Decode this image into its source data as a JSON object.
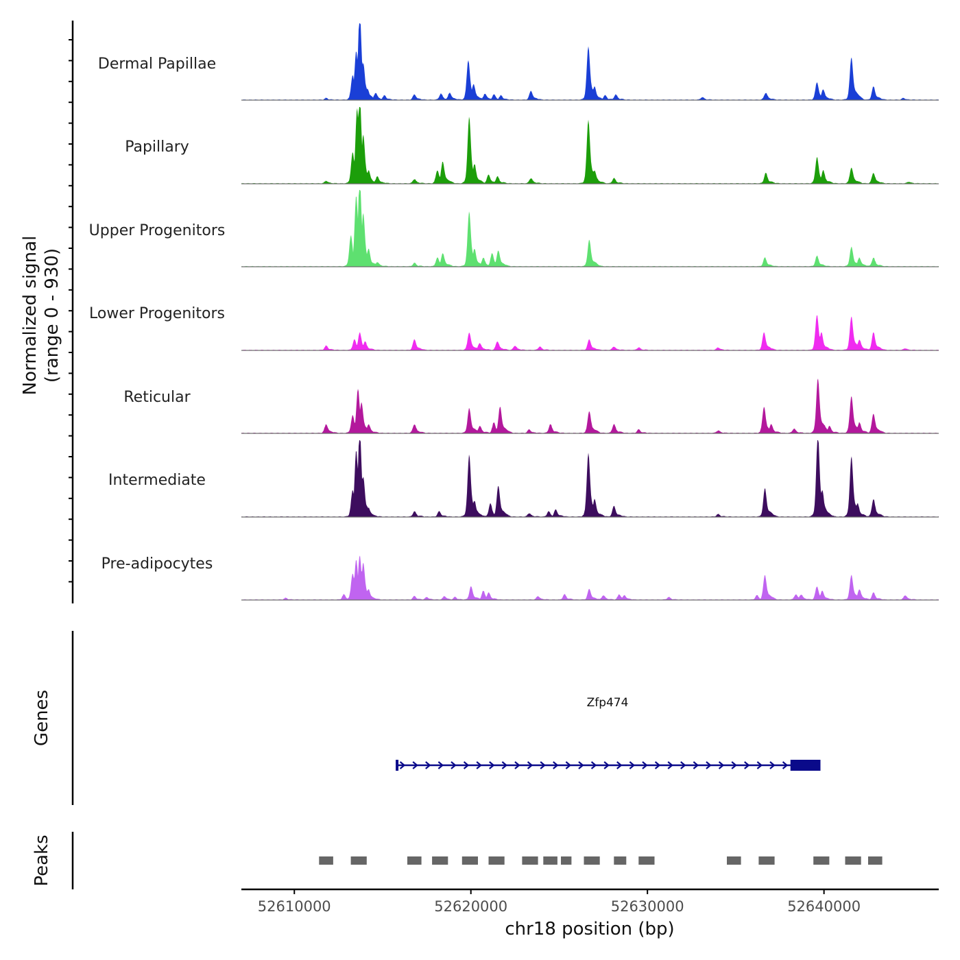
{
  "chart_data": {
    "type": "area",
    "title": "",
    "chromosome": "chr18",
    "xlabel": "chr18 position (bp)",
    "ylabel_line1": "Normalized signal",
    "ylabel_line2": "(range 0 - 930)",
    "y_range": [
      0,
      930
    ],
    "xlim": [
      52607000,
      52646500
    ],
    "x_ticks": [
      52610000,
      52620000,
      52630000,
      52640000
    ],
    "x_tick_labels": [
      "52610000",
      "52620000",
      "52630000",
      "52640000"
    ],
    "tracks": [
      {
        "name": "Dermal Papillae",
        "color": "#1a3fd6",
        "peaks": [
          [
            52611800,
            0.02
          ],
          [
            52613300,
            0.28
          ],
          [
            52613500,
            0.55
          ],
          [
            52613700,
            1.0
          ],
          [
            52613900,
            0.42
          ],
          [
            52614150,
            0.12
          ],
          [
            52614600,
            0.08
          ],
          [
            52615100,
            0.05
          ],
          [
            52616800,
            0.06
          ],
          [
            52618300,
            0.07
          ],
          [
            52618800,
            0.08
          ],
          [
            52619850,
            0.45
          ],
          [
            52620150,
            0.18
          ],
          [
            52620800,
            0.07
          ],
          [
            52621300,
            0.06
          ],
          [
            52621700,
            0.05
          ],
          [
            52623400,
            0.1
          ],
          [
            52626650,
            0.6
          ],
          [
            52627000,
            0.15
          ],
          [
            52627600,
            0.05
          ],
          [
            52628200,
            0.06
          ],
          [
            52633100,
            0.03
          ],
          [
            52636700,
            0.08
          ],
          [
            52639600,
            0.2
          ],
          [
            52639950,
            0.12
          ],
          [
            52641550,
            0.48
          ],
          [
            52642800,
            0.15
          ],
          [
            52644500,
            0.02
          ]
        ]
      },
      {
        "name": "Papillary",
        "color": "#1c9e0a",
        "peaks": [
          [
            52611800,
            0.03
          ],
          [
            52613300,
            0.35
          ],
          [
            52613550,
            0.85
          ],
          [
            52613700,
            1.0
          ],
          [
            52613900,
            0.55
          ],
          [
            52614200,
            0.15
          ],
          [
            52614700,
            0.08
          ],
          [
            52616800,
            0.05
          ],
          [
            52618100,
            0.15
          ],
          [
            52618400,
            0.25
          ],
          [
            52619900,
            0.75
          ],
          [
            52620200,
            0.22
          ],
          [
            52621000,
            0.1
          ],
          [
            52621500,
            0.08
          ],
          [
            52623400,
            0.06
          ],
          [
            52626650,
            0.72
          ],
          [
            52627000,
            0.15
          ],
          [
            52628100,
            0.06
          ],
          [
            52636700,
            0.12
          ],
          [
            52639600,
            0.3
          ],
          [
            52639950,
            0.15
          ],
          [
            52641550,
            0.18
          ],
          [
            52642800,
            0.12
          ],
          [
            52644800,
            0.02
          ]
        ]
      },
      {
        "name": "Upper Progenitors",
        "color": "#5ee070",
        "peaks": [
          [
            52613200,
            0.35
          ],
          [
            52613500,
            0.8
          ],
          [
            52613700,
            1.0
          ],
          [
            52613900,
            0.6
          ],
          [
            52614200,
            0.2
          ],
          [
            52614700,
            0.05
          ],
          [
            52616800,
            0.04
          ],
          [
            52618100,
            0.1
          ],
          [
            52618400,
            0.15
          ],
          [
            52619900,
            0.62
          ],
          [
            52620200,
            0.2
          ],
          [
            52620700,
            0.1
          ],
          [
            52621200,
            0.15
          ],
          [
            52621550,
            0.18
          ],
          [
            52626700,
            0.3
          ],
          [
            52636650,
            0.1
          ],
          [
            52639600,
            0.12
          ],
          [
            52641550,
            0.22
          ],
          [
            52642000,
            0.1
          ],
          [
            52642800,
            0.1
          ]
        ]
      },
      {
        "name": "Lower Progenitors",
        "color": "#f02bf0",
        "peaks": [
          [
            52611800,
            0.05
          ],
          [
            52613400,
            0.12
          ],
          [
            52613700,
            0.2
          ],
          [
            52614000,
            0.1
          ],
          [
            52616800,
            0.12
          ],
          [
            52619900,
            0.2
          ],
          [
            52620500,
            0.08
          ],
          [
            52621500,
            0.1
          ],
          [
            52622500,
            0.05
          ],
          [
            52623900,
            0.04
          ],
          [
            52626700,
            0.12
          ],
          [
            52628100,
            0.04
          ],
          [
            52629500,
            0.03
          ],
          [
            52634000,
            0.03
          ],
          [
            52636600,
            0.2
          ],
          [
            52639600,
            0.4
          ],
          [
            52639850,
            0.2
          ],
          [
            52641550,
            0.38
          ],
          [
            52642000,
            0.12
          ],
          [
            52642800,
            0.2
          ],
          [
            52644600,
            0.02
          ]
        ]
      },
      {
        "name": "Reticular",
        "color": "#b3189c",
        "peaks": [
          [
            52611800,
            0.1
          ],
          [
            52613300,
            0.2
          ],
          [
            52613600,
            0.5
          ],
          [
            52613800,
            0.35
          ],
          [
            52614200,
            0.1
          ],
          [
            52616800,
            0.1
          ],
          [
            52619900,
            0.28
          ],
          [
            52620500,
            0.08
          ],
          [
            52621300,
            0.12
          ],
          [
            52621650,
            0.3
          ],
          [
            52623300,
            0.04
          ],
          [
            52624500,
            0.1
          ],
          [
            52626700,
            0.25
          ],
          [
            52628100,
            0.1
          ],
          [
            52629500,
            0.04
          ],
          [
            52634000,
            0.03
          ],
          [
            52636600,
            0.3
          ],
          [
            52637000,
            0.1
          ],
          [
            52638300,
            0.05
          ],
          [
            52639650,
            0.62
          ],
          [
            52640300,
            0.08
          ],
          [
            52641550,
            0.42
          ],
          [
            52642000,
            0.12
          ],
          [
            52642800,
            0.22
          ]
        ]
      },
      {
        "name": "Intermediate",
        "color": "#3d0d5e",
        "peaks": [
          [
            52613300,
            0.3
          ],
          [
            52613500,
            0.75
          ],
          [
            52613700,
            1.0
          ],
          [
            52613900,
            0.45
          ],
          [
            52614200,
            0.1
          ],
          [
            52616800,
            0.06
          ],
          [
            52618200,
            0.06
          ],
          [
            52619900,
            0.7
          ],
          [
            52620200,
            0.18
          ],
          [
            52621100,
            0.15
          ],
          [
            52621550,
            0.35
          ],
          [
            52623300,
            0.04
          ],
          [
            52624400,
            0.06
          ],
          [
            52624800,
            0.08
          ],
          [
            52626650,
            0.72
          ],
          [
            52627000,
            0.2
          ],
          [
            52628100,
            0.12
          ],
          [
            52634000,
            0.03
          ],
          [
            52636650,
            0.32
          ],
          [
            52639650,
            0.95
          ],
          [
            52639900,
            0.3
          ],
          [
            52641550,
            0.68
          ],
          [
            52641900,
            0.15
          ],
          [
            52642800,
            0.2
          ]
        ]
      },
      {
        "name": "Pre-adipocytes",
        "color": "#c064f0",
        "peaks": [
          [
            52609500,
            0.02
          ],
          [
            52612800,
            0.06
          ],
          [
            52613300,
            0.3
          ],
          [
            52613500,
            0.45
          ],
          [
            52613700,
            0.5
          ],
          [
            52613900,
            0.42
          ],
          [
            52614200,
            0.12
          ],
          [
            52616800,
            0.04
          ],
          [
            52617500,
            0.03
          ],
          [
            52618500,
            0.04
          ],
          [
            52619100,
            0.03
          ],
          [
            52620000,
            0.15
          ],
          [
            52620700,
            0.1
          ],
          [
            52621000,
            0.08
          ],
          [
            52623800,
            0.04
          ],
          [
            52625300,
            0.06
          ],
          [
            52626700,
            0.12
          ],
          [
            52627500,
            0.05
          ],
          [
            52628400,
            0.06
          ],
          [
            52628700,
            0.05
          ],
          [
            52631200,
            0.03
          ],
          [
            52636650,
            0.28
          ],
          [
            52636200,
            0.05
          ],
          [
            52638400,
            0.06
          ],
          [
            52638700,
            0.06
          ],
          [
            52639600,
            0.15
          ],
          [
            52639900,
            0.1
          ],
          [
            52641550,
            0.28
          ],
          [
            52642000,
            0.12
          ],
          [
            52642800,
            0.08
          ],
          [
            52644600,
            0.05
          ]
        ]
      }
    ],
    "genes": {
      "label": "Genes",
      "items": [
        {
          "name": "Zfp474",
          "strand": "+",
          "start": 52615800,
          "end": 52639800,
          "thick_start": 52638100,
          "thick_end": 52639800,
          "color": "#0a0a8a"
        }
      ]
    },
    "peaks_track": {
      "label": "Peaks",
      "color": "#666666",
      "regions": [
        [
          52611400,
          52612200
        ],
        [
          52613200,
          52614100
        ],
        [
          52616400,
          52617200
        ],
        [
          52617800,
          52618700
        ],
        [
          52619500,
          52620400
        ],
        [
          52621000,
          52621900
        ],
        [
          52622900,
          52623800
        ],
        [
          52624100,
          52624900
        ],
        [
          52625100,
          52625700
        ],
        [
          52626400,
          52627300
        ],
        [
          52628100,
          52628800
        ],
        [
          52629500,
          52630400
        ],
        [
          52634500,
          52635300
        ],
        [
          52636300,
          52637200
        ],
        [
          52639400,
          52640300
        ],
        [
          52641200,
          52642100
        ],
        [
          52642500,
          52643300
        ]
      ]
    }
  }
}
